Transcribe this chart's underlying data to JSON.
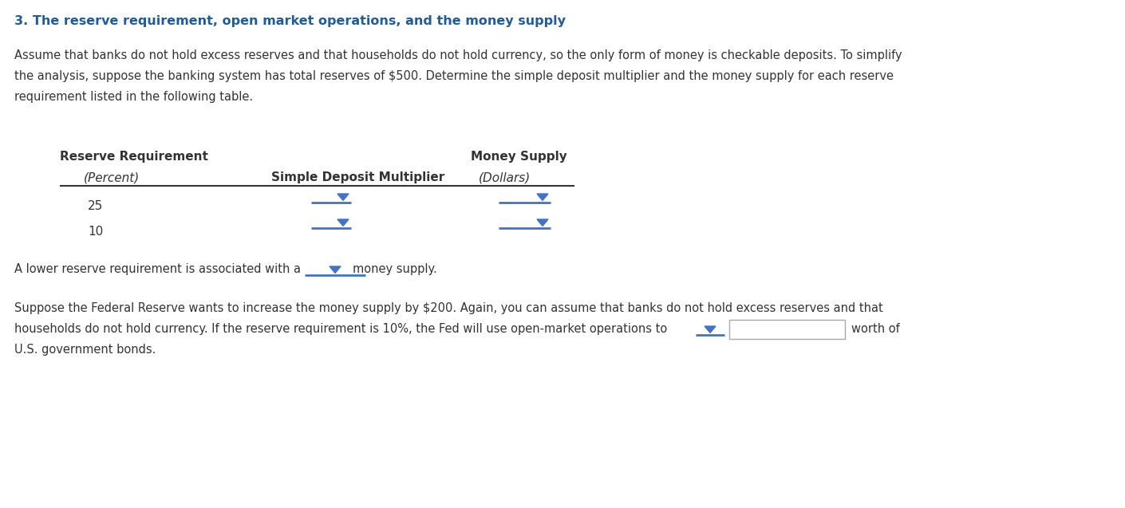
{
  "title": "3. The reserve requirement, open market operations, and the money supply",
  "title_color": "#1F5C99",
  "title_fontsize": 11.5,
  "body_text_1_line1": "Assume that banks do not hold excess reserves and that households do not hold currency, so the only form of money is checkable deposits. To simplify",
  "body_text_1_line2": "the analysis, suppose the banking system has total reserves of $500. Determine the simple deposit multiplier and the money supply for each reserve",
  "body_text_1_line3": "requirement listed in the following table.",
  "col1_header1": "Reserve Requirement",
  "col3_header1": "Money Supply",
  "col1_header2": "(Percent)",
  "col2_header2": "Simple Deposit Multiplier",
  "col3_header2": "(Dollars)",
  "row1_col1": "25",
  "row2_col1": "10",
  "bottom_text1a": "A lower reserve requirement is associated with a",
  "bottom_text1b": "money supply.",
  "bottom_text2_line1": "Suppose the Federal Reserve wants to increase the money supply by $200. Again, you can assume that banks do not hold excess reserves and that",
  "bottom_text2_line2": "households do not hold currency. If the reserve requirement is 10%, the Fed will use open-market operations to",
  "bottom_text2_line2b": "worth of",
  "bottom_text2_line3": "U.S. government bonds.",
  "dropdown_color": "#4472C4",
  "line_color": "#4472C4",
  "box_border_color": "#aaaaaa",
  "background_color": "#ffffff",
  "text_color": "#333333",
  "header_bold_color": "#1a1a1a",
  "body_fontsize": 10.5,
  "header_fontsize": 11.0
}
